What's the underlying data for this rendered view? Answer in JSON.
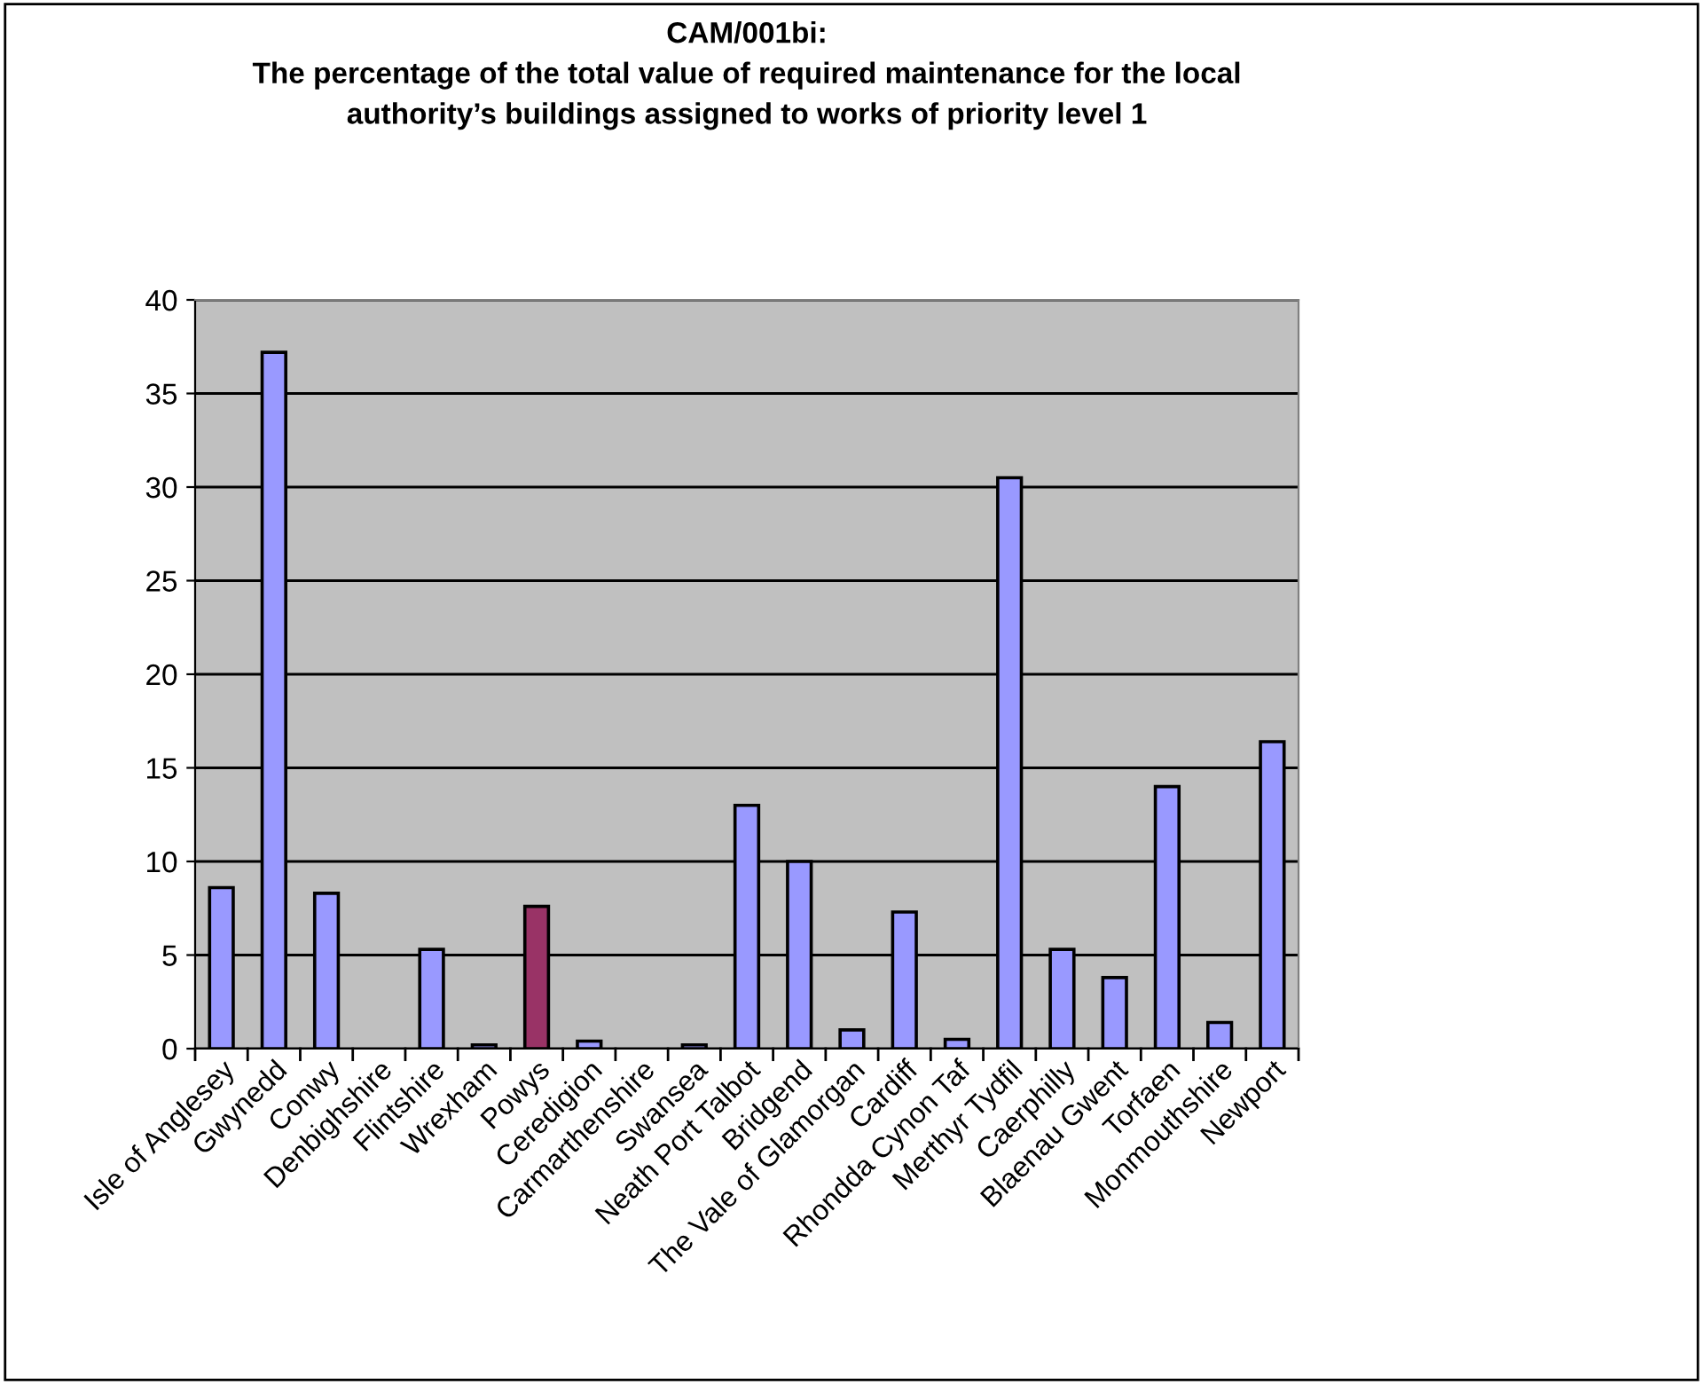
{
  "chart_data": {
    "type": "bar",
    "title": "CAM/001bi:\nThe percentage of the total value of required maintenance for the local\nauthority’s buildings assigned to works of priority level 1",
    "categories": [
      "Isle of Anglesey",
      "Gwynedd",
      "Conwy",
      "Denbighshire",
      "Flintshire",
      "Wrexham",
      "Powys",
      "Ceredigion",
      "Carmarthenshire",
      "Swansea",
      "Neath Port Talbot",
      "Bridgend",
      "The Vale of Glamorgan",
      "Cardiff",
      "Rhondda Cynon Taf",
      "Merthyr Tydfil",
      "Caerphilly",
      "Blaenau Gwent",
      "Torfaen",
      "Monmouthshire",
      "Newport"
    ],
    "values": [
      8.6,
      37.2,
      8.3,
      null,
      5.3,
      0.2,
      7.6,
      0.4,
      null,
      0.2,
      13.0,
      10.0,
      1.0,
      7.3,
      0.5,
      30.5,
      5.3,
      3.8,
      14.0,
      1.4,
      16.4
    ],
    "colors": [
      "#9999ff",
      "#9999ff",
      "#9999ff",
      "#9999ff",
      "#9999ff",
      "#9999ff",
      "#993366",
      "#9999ff",
      "#9999ff",
      "#9999ff",
      "#9999ff",
      "#9999ff",
      "#9999ff",
      "#9999ff",
      "#9999ff",
      "#9999ff",
      "#9999ff",
      "#9999ff",
      "#9999ff",
      "#9999ff",
      "#9999ff"
    ],
    "ylim": [
      0,
      40
    ],
    "yticks": [
      0,
      5,
      10,
      15,
      20,
      25,
      30,
      35,
      40
    ],
    "grid": "y",
    "legend": false
  }
}
